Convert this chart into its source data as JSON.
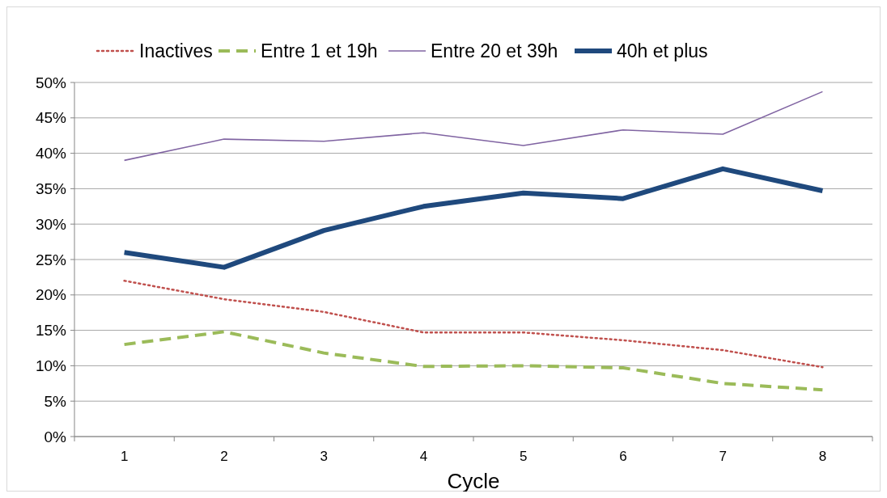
{
  "chart_data": {
    "type": "line",
    "xlabel": "Cycle",
    "categories": [
      "1",
      "2",
      "3",
      "4",
      "5",
      "6",
      "7",
      "8"
    ],
    "ylim": [
      0,
      50
    ],
    "yticks": [
      {
        "value": 0,
        "label": "0%"
      },
      {
        "value": 5,
        "label": "5%"
      },
      {
        "value": 10,
        "label": "10%"
      },
      {
        "value": 15,
        "label": "15%"
      },
      {
        "value": 20,
        "label": "20%"
      },
      {
        "value": 25,
        "label": "25%"
      },
      {
        "value": 30,
        "label": "30%"
      },
      {
        "value": 35,
        "label": "35%"
      },
      {
        "value": 40,
        "label": "40%"
      },
      {
        "value": 45,
        "label": "45%"
      },
      {
        "value": 50,
        "label": "50%"
      }
    ],
    "grid": "y",
    "legend": "top",
    "marker": "none",
    "series": [
      {
        "name": "Inactives",
        "color": "#c0504d",
        "line_style": "dotted",
        "values": [
          22,
          19.4,
          17.6,
          14.7,
          14.7,
          13.6,
          12.2,
          9.8
        ]
      },
      {
        "name": "Entre 1 et 19h",
        "color": "#9bbb59",
        "line_style": "dashed",
        "values": [
          13,
          14.8,
          11.8,
          9.9,
          10,
          9.7,
          7.5,
          6.6
        ]
      },
      {
        "name": "Entre 20 et 39h",
        "color": "#8064a2",
        "line_style": "solid",
        "values": [
          39,
          42,
          41.7,
          42.9,
          41.1,
          43.3,
          42.7,
          48.7
        ]
      },
      {
        "name": "40h et plus",
        "color": "#1f497d",
        "line_style": "solid",
        "values": [
          26,
          23.9,
          29.1,
          32.5,
          34.4,
          33.6,
          37.8,
          34.7
        ]
      }
    ]
  }
}
